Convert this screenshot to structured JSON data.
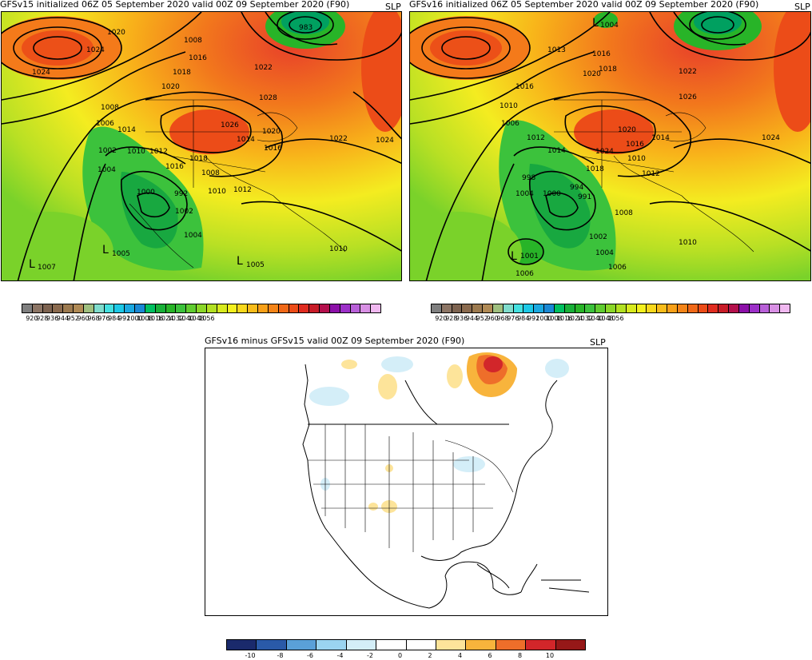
{
  "panel_left": {
    "title": "GFSv15 initialized 06Z 05 September 2020 valid 00Z 09 September 2020 (F90)",
    "field": "SLP",
    "contour_labels": [
      "1020",
      "1024",
      "1008",
      "1016",
      "1018",
      "1020",
      "983",
      "1022",
      "1024",
      "1028",
      "1026",
      "1020",
      "1016",
      "1014",
      "1022",
      "1024",
      "1008",
      "1006",
      "1014",
      "1002",
      "1010",
      "1012",
      "1018",
      "1004",
      "1016",
      "1000",
      "992",
      "1008",
      "1010",
      "1012",
      "1004",
      "1002",
      "1010",
      "1007",
      "1005",
      "1005"
    ],
    "low_labels": [
      "L",
      "L",
      "L"
    ],
    "colorbar": {
      "labels": [
        "920",
        "928",
        "936",
        "944",
        "952",
        "960",
        "968",
        "976",
        "984",
        "992",
        "1000",
        "1008",
        "1016",
        "1024",
        "1032",
        "1040",
        "1048",
        "1056"
      ],
      "colors": [
        "#7f7f7f",
        "#8c7565",
        "#7d6350",
        "#8a6a4e",
        "#9c7a4f",
        "#b08a55",
        "#9fbf7f",
        "#7fdccc",
        "#44e0e0",
        "#1cc8e6",
        "#1aa8e0",
        "#1a88d4",
        "#00c060",
        "#18b038",
        "#28b428",
        "#3cc23c",
        "#60cc30",
        "#8ad628",
        "#b2e022",
        "#d8ea1e",
        "#f4f01e",
        "#f8d81c",
        "#f8bc1a",
        "#f8a018",
        "#f48418",
        "#f06818",
        "#ec4c18",
        "#e02c20",
        "#c81c28",
        "#b4104c",
        "#8c10a8",
        "#9c30c8",
        "#b860d8",
        "#d890e4",
        "#f0b8f0"
      ]
    }
  },
  "panel_right": {
    "title": "GFSv16 initialized 06Z 05 September 2020 valid 00Z 09 September 2020 (F90)",
    "field": "SLP",
    "contour_labels": [
      "1004",
      "1013",
      "1016",
      "1018",
      "1020",
      "1022",
      "1026",
      "1024",
      "1010",
      "1016",
      "1006",
      "1012",
      "1014",
      "1020",
      "1016",
      "1010",
      "1014",
      "1024",
      "1018",
      "1012",
      "1004",
      "1000",
      "998",
      "994",
      "991",
      "1008",
      "1002",
      "1004",
      "1006",
      "1010",
      "1001",
      "1006"
    ],
    "low_labels": [
      "L",
      "L"
    ],
    "colorbar": {
      "labels": [
        "920",
        "928",
        "936",
        "944",
        "952",
        "960",
        "968",
        "976",
        "984",
        "992",
        "1000",
        "1008",
        "1016",
        "1024",
        "1032",
        "1040",
        "1048",
        "1056"
      ]
    }
  },
  "panel_diff": {
    "title": "GFSv16 minus GFSv15 valid 00Z 09 September 2020 (F90)",
    "field": "SLP",
    "colorbar": {
      "labels": [
        "-10",
        "-8",
        "-6",
        "-4",
        "-2",
        "0",
        "2",
        "4",
        "6",
        "8",
        "10"
      ],
      "colors": [
        "#1a2a6c",
        "#2a5aa8",
        "#5aa0d8",
        "#9ad4f0",
        "#d4eef8",
        "#ffffff",
        "#ffffff",
        "#fde49a",
        "#f8b43c",
        "#ee6e2a",
        "#d2262a",
        "#961818"
      ]
    }
  }
}
